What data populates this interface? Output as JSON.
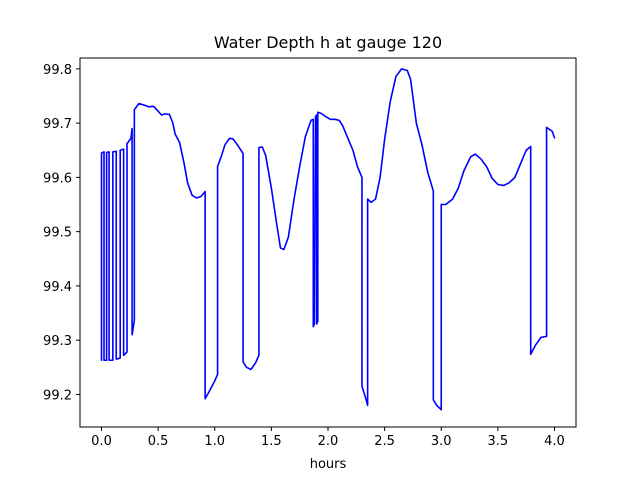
{
  "chart_data": {
    "type": "line",
    "title": "Water Depth h at gauge 120",
    "xlabel": "hours",
    "ylabel": "",
    "xlim": [
      -0.19,
      4.19
    ],
    "ylim": [
      99.14,
      99.82
    ],
    "xticks": [
      0.0,
      0.5,
      1.0,
      1.5,
      2.0,
      2.5,
      3.0,
      3.5,
      4.0
    ],
    "xtick_labels": [
      "0.0",
      "0.5",
      "1.0",
      "1.5",
      "2.0",
      "2.5",
      "3.0",
      "3.5",
      "4.0"
    ],
    "yticks": [
      99.2,
      99.3,
      99.4,
      99.5,
      99.6,
      99.7,
      99.8
    ],
    "ytick_labels": [
      "99.2",
      "99.3",
      "99.4",
      "99.5",
      "99.6",
      "99.7",
      "99.8"
    ],
    "grid": false,
    "color": "#0000ff",
    "series": [
      {
        "points": [
          [
            0.0,
            99.263
          ],
          [
            0.0,
            99.645
          ],
          [
            0.022,
            99.647
          ],
          [
            0.022,
            99.263
          ],
          [
            0.045,
            99.263
          ],
          [
            0.045,
            99.646
          ],
          [
            0.067,
            99.647
          ],
          [
            0.067,
            99.263
          ],
          [
            0.1,
            99.263
          ],
          [
            0.1,
            99.647
          ],
          [
            0.13,
            99.648
          ],
          [
            0.13,
            99.265
          ],
          [
            0.165,
            99.267
          ],
          [
            0.165,
            99.65
          ],
          [
            0.195,
            99.652
          ],
          [
            0.195,
            99.272
          ],
          [
            0.225,
            99.278
          ],
          [
            0.225,
            99.662
          ],
          [
            0.26,
            99.672
          ],
          [
            0.27,
            99.69
          ],
          [
            0.27,
            99.31
          ],
          [
            0.29,
            99.337
          ],
          [
            0.29,
            99.725
          ],
          [
            0.33,
            99.736
          ],
          [
            0.38,
            99.733
          ],
          [
            0.42,
            99.73
          ],
          [
            0.46,
            99.731
          ],
          [
            0.5,
            99.722
          ],
          [
            0.53,
            99.715
          ],
          [
            0.56,
            99.717
          ],
          [
            0.6,
            99.716
          ],
          [
            0.63,
            99.7
          ],
          [
            0.65,
            99.68
          ],
          [
            0.69,
            99.664
          ],
          [
            0.73,
            99.625
          ],
          [
            0.76,
            99.59
          ],
          [
            0.8,
            99.567
          ],
          [
            0.84,
            99.562
          ],
          [
            0.88,
            99.565
          ],
          [
            0.915,
            99.574
          ],
          [
            0.915,
            99.192
          ],
          [
            0.95,
            99.205
          ],
          [
            1.0,
            99.225
          ],
          [
            1.025,
            99.237
          ],
          [
            1.025,
            99.62
          ],
          [
            1.06,
            99.64
          ],
          [
            1.09,
            99.66
          ],
          [
            1.13,
            99.672
          ],
          [
            1.16,
            99.671
          ],
          [
            1.2,
            99.66
          ],
          [
            1.25,
            99.644
          ],
          [
            1.25,
            99.26
          ],
          [
            1.28,
            99.25
          ],
          [
            1.32,
            99.246
          ],
          [
            1.36,
            99.258
          ],
          [
            1.39,
            99.272
          ],
          [
            1.39,
            99.655
          ],
          [
            1.42,
            99.656
          ],
          [
            1.45,
            99.64
          ],
          [
            1.5,
            99.58
          ],
          [
            1.55,
            99.51
          ],
          [
            1.58,
            99.47
          ],
          [
            1.61,
            99.467
          ],
          [
            1.65,
            99.49
          ],
          [
            1.7,
            99.56
          ],
          [
            1.75,
            99.62
          ],
          [
            1.8,
            99.675
          ],
          [
            1.85,
            99.705
          ],
          [
            1.87,
            99.707
          ],
          [
            1.87,
            99.325
          ],
          [
            1.88,
            99.33
          ],
          [
            1.89,
            99.712
          ],
          [
            1.9,
            99.715
          ],
          [
            1.9,
            99.33
          ],
          [
            1.91,
            99.335
          ],
          [
            1.91,
            99.72
          ],
          [
            1.94,
            99.718
          ],
          [
            1.98,
            99.712
          ],
          [
            2.02,
            99.707
          ],
          [
            2.06,
            99.707
          ],
          [
            2.1,
            99.705
          ],
          [
            2.13,
            99.695
          ],
          [
            2.18,
            99.67
          ],
          [
            2.22,
            99.65
          ],
          [
            2.26,
            99.62
          ],
          [
            2.3,
            99.6
          ],
          [
            2.3,
            99.215
          ],
          [
            2.33,
            99.195
          ],
          [
            2.35,
            99.18
          ],
          [
            2.35,
            99.56
          ],
          [
            2.38,
            99.554
          ],
          [
            2.42,
            99.56
          ],
          [
            2.46,
            99.6
          ],
          [
            2.5,
            99.67
          ],
          [
            2.55,
            99.74
          ],
          [
            2.6,
            99.786
          ],
          [
            2.65,
            99.8
          ],
          [
            2.7,
            99.797
          ],
          [
            2.73,
            99.78
          ],
          [
            2.78,
            99.7
          ],
          [
            2.83,
            99.66
          ],
          [
            2.88,
            99.61
          ],
          [
            2.93,
            99.575
          ],
          [
            2.93,
            99.19
          ],
          [
            2.96,
            99.18
          ],
          [
            3.0,
            99.172
          ],
          [
            3.0,
            99.55
          ],
          [
            3.04,
            99.55
          ],
          [
            3.1,
            99.56
          ],
          [
            3.15,
            99.58
          ],
          [
            3.2,
            99.612
          ],
          [
            3.26,
            99.638
          ],
          [
            3.3,
            99.643
          ],
          [
            3.35,
            99.634
          ],
          [
            3.4,
            99.62
          ],
          [
            3.45,
            99.598
          ],
          [
            3.5,
            99.587
          ],
          [
            3.55,
            99.585
          ],
          [
            3.6,
            99.59
          ],
          [
            3.65,
            99.6
          ],
          [
            3.7,
            99.625
          ],
          [
            3.75,
            99.65
          ],
          [
            3.79,
            99.657
          ],
          [
            3.79,
            99.274
          ],
          [
            3.83,
            99.29
          ],
          [
            3.88,
            99.305
          ],
          [
            3.93,
            99.307
          ],
          [
            3.93,
            99.692
          ],
          [
            3.98,
            99.685
          ],
          [
            4.0,
            99.673
          ]
        ]
      }
    ]
  }
}
